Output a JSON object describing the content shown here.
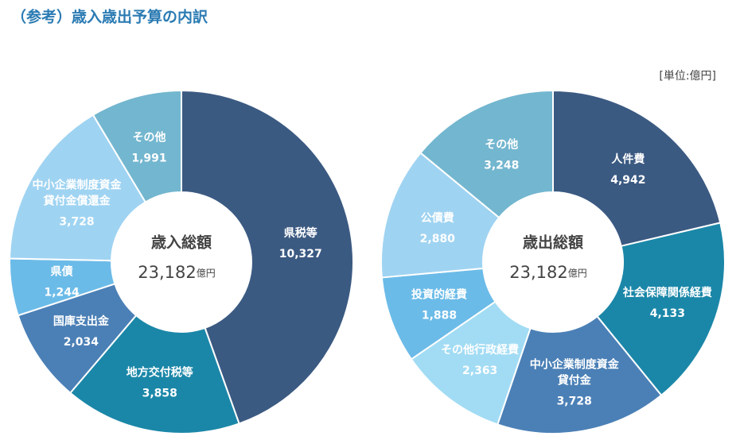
{
  "title": "（参考）歳入歳出予算の内訳",
  "unit": "[単位:億円]",
  "chart_data": [
    {
      "type": "pie",
      "title": "歳入総額",
      "total_label": "23,182",
      "total_unit": "億円",
      "categories": [
        "県税等",
        "地方交付税等",
        "国庫支出金",
        "県債",
        "中小企業制度資金\n貸付金償還金",
        "その他"
      ],
      "values": [
        10327,
        3858,
        2034,
        1244,
        3728,
        1991
      ],
      "value_labels": [
        "10,327",
        "3,858",
        "2,034",
        "1,244",
        "3,728",
        "1,991"
      ],
      "colors": [
        "#3b5a82",
        "#1b87a8",
        "#4b80b6",
        "#6bbbe8",
        "#9fd3f2",
        "#73b6cf"
      ]
    },
    {
      "type": "pie",
      "title": "歳出総額",
      "total_label": "23,182",
      "total_unit": "億円",
      "categories": [
        "人件費",
        "社会保障関係経費",
        "中小企業制度資金\n貸付金",
        "その他行政経費",
        "投資的経費",
        "公債費",
        "その他"
      ],
      "values": [
        4942,
        4133,
        3728,
        2363,
        1888,
        2880,
        3248
      ],
      "value_labels": [
        "4,942",
        "4,133",
        "3,728",
        "2,363",
        "1,888",
        "2,880",
        "3,248"
      ],
      "colors": [
        "#3b5a82",
        "#1b87a8",
        "#4b80b6",
        "#a2dcf4",
        "#6bbbe8",
        "#9fd3f2",
        "#73b6cf"
      ]
    }
  ]
}
